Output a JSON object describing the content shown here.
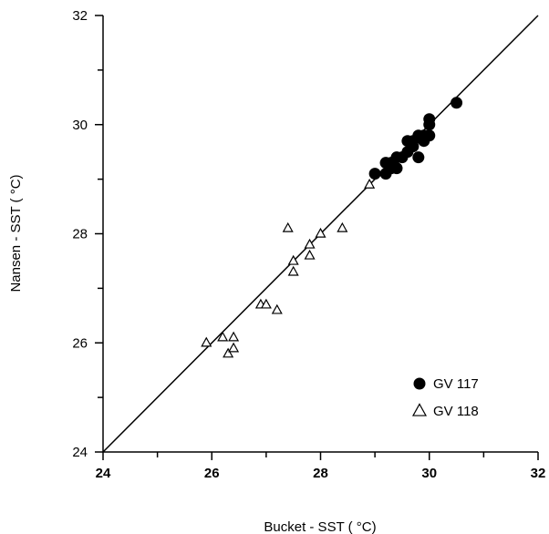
{
  "chart_data": {
    "type": "scatter",
    "title": "",
    "xlabel": "Bucket - SST ( °C)",
    "ylabel": "Nansen - SST ( °C)",
    "xlim": [
      24,
      32
    ],
    "ylim": [
      24,
      32
    ],
    "x_ticks": [
      "24",
      "26",
      "28",
      "30",
      "32"
    ],
    "y_ticks": [
      "24",
      "26",
      "28",
      "30",
      "32"
    ],
    "grid": false,
    "legend_position": "bottom-right",
    "reference_line": {
      "x": [
        24,
        32
      ],
      "y": [
        24,
        32
      ]
    },
    "series": [
      {
        "name": "GV 117",
        "marker": "filled-circle",
        "color": "#000000",
        "points": [
          [
            29.0,
            29.1
          ],
          [
            29.2,
            29.1
          ],
          [
            29.2,
            29.3
          ],
          [
            29.3,
            29.2
          ],
          [
            29.3,
            29.3
          ],
          [
            29.4,
            29.2
          ],
          [
            29.4,
            29.4
          ],
          [
            29.5,
            29.4
          ],
          [
            29.6,
            29.5
          ],
          [
            29.6,
            29.7
          ],
          [
            29.7,
            29.6
          ],
          [
            29.7,
            29.7
          ],
          [
            29.8,
            29.8
          ],
          [
            29.8,
            29.4
          ],
          [
            29.9,
            29.7
          ],
          [
            29.9,
            29.8
          ],
          [
            30.0,
            29.8
          ],
          [
            30.0,
            30.0
          ],
          [
            30.0,
            30.1
          ],
          [
            30.5,
            30.4
          ]
        ]
      },
      {
        "name": "GV 118",
        "marker": "open-triangle",
        "color": "#000000",
        "points": [
          [
            25.9,
            26.0
          ],
          [
            26.2,
            26.1
          ],
          [
            26.3,
            25.8
          ],
          [
            26.4,
            25.9
          ],
          [
            26.4,
            26.1
          ],
          [
            26.9,
            26.7
          ],
          [
            27.0,
            26.7
          ],
          [
            27.2,
            26.6
          ],
          [
            27.4,
            28.1
          ],
          [
            27.5,
            27.3
          ],
          [
            27.5,
            27.5
          ],
          [
            27.8,
            27.6
          ],
          [
            27.8,
            27.8
          ],
          [
            28.0,
            28.0
          ],
          [
            28.4,
            28.1
          ],
          [
            28.9,
            28.9
          ]
        ]
      }
    ]
  }
}
